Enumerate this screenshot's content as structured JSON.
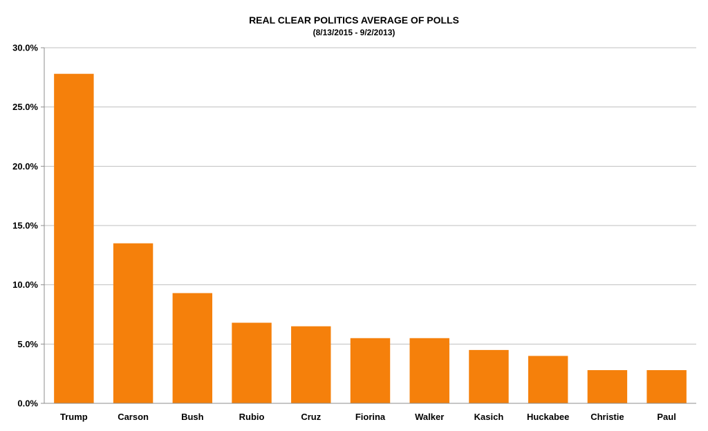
{
  "chart_data": {
    "type": "bar",
    "title": "REAL CLEAR POLITICS AVERAGE OF POLLS",
    "subtitle": "(8/13/2015 - 9/2/2013)",
    "xlabel": "",
    "ylabel": "",
    "ylim": [
      0,
      30
    ],
    "yticks": [
      0,
      5,
      10,
      15,
      20,
      25,
      30
    ],
    "ytick_labels": [
      "0.0%",
      "5.0%",
      "10.0%",
      "15.0%",
      "20.0%",
      "25.0%",
      "30.0%"
    ],
    "grid": true,
    "legend": "none",
    "bar_color": "#f5800b",
    "categories": [
      "Trump",
      "Carson",
      "Bush",
      "Rubio",
      "Cruz",
      "Fiorina",
      "Walker",
      "Kasich",
      "Huckabee",
      "Christie",
      "Paul"
    ],
    "values": [
      27.8,
      13.5,
      9.3,
      6.8,
      6.5,
      5.5,
      5.5,
      4.5,
      4.0,
      2.8,
      2.8
    ]
  }
}
